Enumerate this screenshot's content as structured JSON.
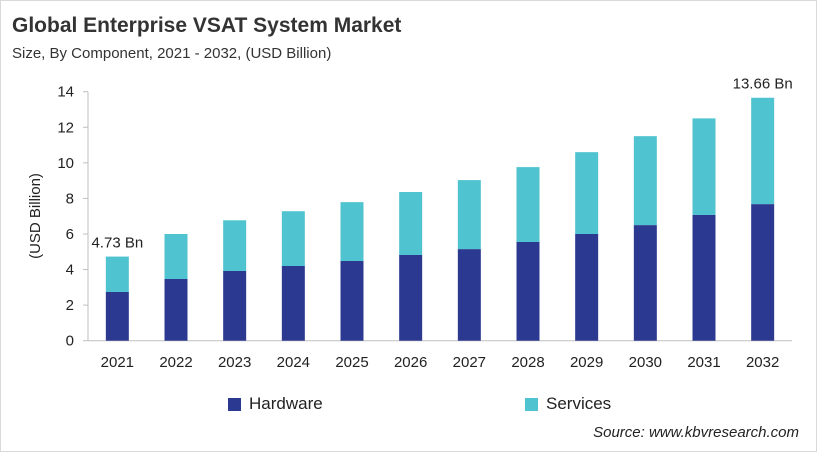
{
  "title": "Global Enterprise VSAT System Market",
  "subtitle": "Size, By Component, 2021 - 2032, (USD Billion)",
  "source": "Source: www.kbvresearch.com",
  "chart_data": {
    "type": "bar",
    "stacked": true,
    "categories": [
      "2021",
      "2022",
      "2023",
      "2024",
      "2025",
      "2026",
      "2027",
      "2028",
      "2029",
      "2030",
      "2031",
      "2032"
    ],
    "series": [
      {
        "name": "Hardware",
        "color": "#2b3990",
        "values": [
          2.74,
          3.47,
          3.92,
          4.2,
          4.48,
          4.82,
          5.15,
          5.55,
          6.0,
          6.5,
          7.07,
          7.68
        ]
      },
      {
        "name": "Services",
        "color": "#4fc3cf",
        "values": [
          1.99,
          2.53,
          2.85,
          3.08,
          3.31,
          3.54,
          3.88,
          4.21,
          4.6,
          5.0,
          5.43,
          5.98
        ]
      }
    ],
    "data_labels": [
      {
        "category": "2021",
        "text": "4.73 Bn"
      },
      {
        "category": "2032",
        "text": "13.66 Bn"
      }
    ],
    "ylabel": "(USD Billion)",
    "xlabel": "",
    "ylim": [
      0,
      14
    ],
    "yticks": [
      "0",
      "2",
      "4",
      "6",
      "8",
      "10",
      "12",
      "14"
    ],
    "grid": false,
    "legend_position": "bottom"
  }
}
